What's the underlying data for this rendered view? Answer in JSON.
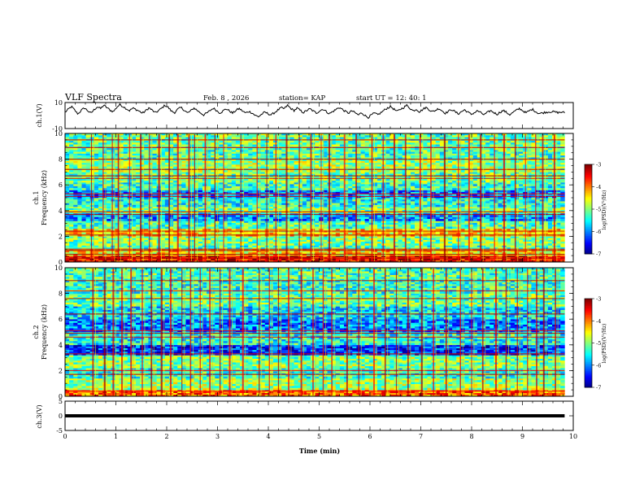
{
  "header": {
    "title": "VLF Spectra",
    "date": "Feb. 8 , 2026",
    "station": "station= KAP",
    "start": "start  UT =   12: 40: 1"
  },
  "chart_data": [
    {
      "type": "line",
      "name": "ch1-waveform",
      "ylabel": "ch.1(V)",
      "ylim": [
        -10,
        10
      ],
      "yticks": [
        "10",
        "-10"
      ],
      "xlim": [
        0,
        10
      ],
      "x_end": 9.83,
      "samples": [
        2.5,
        4.8,
        6.9,
        4.1,
        1.2,
        3.9,
        5.9,
        3.8,
        1.7,
        4.4,
        6.8,
        5.3,
        7.9,
        6.1,
        4.0,
        3.1,
        6.2,
        8.4,
        7.0,
        5.3,
        3.8,
        5.7,
        4.7,
        3.4,
        1.8,
        3.6,
        5.9,
        4.2,
        2.0,
        3.8,
        5.7,
        7.9,
        6.3,
        3.4,
        2.2,
        4.9,
        6.2,
        4.1,
        1.9,
        3.6,
        5.8,
        4.0,
        2.1,
        0.5,
        1.9,
        3.8,
        5.6,
        3.9,
        2.0,
        3.5,
        5.2,
        3.6,
        1.8,
        3.9,
        5.4,
        3.6,
        1.9,
        3.2,
        2.1,
        0.1,
        -0.9,
        1.0,
        2.6,
        1.4,
        0.5,
        2.3,
        4.1,
        6.0,
        5.2,
        7.8,
        5.6,
        3.7,
        5.7,
        3.9,
        2.2,
        3.9,
        5.1,
        3.5,
        1.9,
        3.6,
        5.0,
        3.2,
        1.4,
        3.0,
        4.5,
        6.3,
        4.8,
        3.0,
        1.9,
        3.6,
        2.1,
        0.4,
        2.2,
        0.2,
        -1.5,
        0.3,
        1.9,
        0.5,
        2.2,
        4.1,
        5.8,
        6.9,
        5.0,
        3.1,
        4.8,
        6.1,
        7.9,
        5.7,
        3.6,
        4.9,
        2.8,
        4.8,
        6.2,
        4.5,
        2.9,
        4.1,
        5.5,
        3.6,
        1.8,
        3.3,
        4.7,
        2.9,
        1.3,
        3.0,
        4.4,
        2.6,
        0.9,
        2.2,
        3.7,
        2.1,
        0.6,
        2.2,
        3.8,
        2.4,
        0.9,
        2.6,
        3.9,
        2.3,
        0.7,
        2.4,
        4.0,
        5.4,
        3.8,
        2.0,
        3.6,
        4.9,
        3.1,
        1.6,
        1.9,
        2.5,
        2.8,
        3.0,
        2.7,
        2.3,
        2.6,
        2.2
      ],
      "color": "#000000"
    },
    {
      "type": "heatmap",
      "name": "ch1-spectrogram",
      "ylabel": "ch.1",
      "ylabel2": "Frequency (kHz)",
      "ylim": [
        0,
        10
      ],
      "yticks": [
        "0",
        "2",
        "4",
        "6",
        "8",
        "10"
      ],
      "xlim": [
        0,
        10
      ],
      "x_end": 9.83,
      "colorbar": {
        "label": "log(PSD)(V²/Hz)",
        "min": -7,
        "max": -3,
        "ticks": [
          "-3",
          "-4",
          "-5",
          "-6",
          "-7"
        ]
      },
      "bands": [
        {
          "y0": 0.0,
          "y1": 0.5,
          "level": -3.4
        },
        {
          "y0": 0.5,
          "y1": 1.0,
          "level": -4.4
        },
        {
          "y0": 1.0,
          "y1": 1.3,
          "level": -5.2
        },
        {
          "y0": 1.3,
          "y1": 2.0,
          "level": -5.0
        },
        {
          "y0": 2.0,
          "y1": 2.6,
          "level": -4.4
        },
        {
          "y0": 2.6,
          "y1": 3.2,
          "level": -5.2
        },
        {
          "y0": 3.2,
          "y1": 3.8,
          "level": -5.9
        },
        {
          "y0": 3.8,
          "y1": 4.3,
          "level": -5.0
        },
        {
          "y0": 4.3,
          "y1": 5.0,
          "level": -5.4
        },
        {
          "y0": 5.0,
          "y1": 5.6,
          "level": -6.0
        },
        {
          "y0": 5.6,
          "y1": 6.2,
          "level": -5.3
        },
        {
          "y0": 6.2,
          "y1": 7.0,
          "level": -5.1
        },
        {
          "y0": 7.0,
          "y1": 8.0,
          "level": -4.9
        },
        {
          "y0": 8.0,
          "y1": 9.0,
          "level": -5.2
        },
        {
          "y0": 9.0,
          "y1": 10.0,
          "level": -5.1
        }
      ],
      "lines_khz": [
        0.3,
        0.6,
        0.9,
        1.0,
        2.1,
        2.4,
        3.7,
        3.9,
        5.1,
        5.3,
        6.5,
        6.7,
        7.2,
        8.0,
        8.9,
        9.5
      ],
      "spikes_min": [
        0.52,
        0.75,
        0.93,
        1.05,
        1.27,
        1.49,
        1.66,
        1.85,
        2.05,
        2.22,
        2.44,
        2.55,
        2.76,
        2.95,
        3.12,
        3.46,
        3.78,
        3.97,
        4.15,
        4.36,
        4.61,
        4.84,
        5.04,
        5.2,
        5.5,
        5.73,
        6.04,
        6.26,
        6.48,
        6.7,
        6.99,
        7.2,
        7.47,
        7.74,
        7.95,
        8.18,
        8.45,
        8.64,
        8.86,
        9.06,
        9.26,
        9.4,
        9.63
      ]
    },
    {
      "type": "heatmap",
      "name": "ch2-spectrogram",
      "ylabel": "ch.2",
      "ylabel2": "Frequency (kHz)",
      "ylim": [
        0,
        10
      ],
      "yticks": [
        "0",
        "2",
        "4",
        "6",
        "8",
        "10"
      ],
      "xlim": [
        0,
        10
      ],
      "x_end": 9.83,
      "colorbar": {
        "label": "log(PSD)(V²/Hz)",
        "min": -7,
        "max": -3,
        "ticks": [
          "-3",
          "-4",
          "-5",
          "-6",
          "-7"
        ]
      },
      "bands": [
        {
          "y0": 0.0,
          "y1": 0.5,
          "level": -3.9
        },
        {
          "y0": 0.5,
          "y1": 1.4,
          "level": -4.9
        },
        {
          "y0": 1.4,
          "y1": 2.2,
          "level": -5.3
        },
        {
          "y0": 2.2,
          "y1": 3.2,
          "level": -5.0
        },
        {
          "y0": 3.2,
          "y1": 4.0,
          "level": -6.3
        },
        {
          "y0": 4.0,
          "y1": 5.0,
          "level": -5.4
        },
        {
          "y0": 5.0,
          "y1": 6.0,
          "level": -6.0
        },
        {
          "y0": 6.0,
          "y1": 7.0,
          "level": -5.6
        },
        {
          "y0": 7.0,
          "y1": 8.0,
          "level": -5.1
        },
        {
          "y0": 8.0,
          "y1": 9.0,
          "level": -5.3
        },
        {
          "y0": 9.0,
          "y1": 10.0,
          "level": -5.2
        }
      ],
      "lines_khz": [
        0.4,
        1.7,
        2.0,
        3.3,
        4.6,
        4.9,
        5.1,
        6.4,
        7.6,
        8.2,
        9.0
      ],
      "spikes_min": [
        0.55,
        0.78,
        0.95,
        1.12,
        1.3,
        1.52,
        1.7,
        1.9,
        2.08,
        2.3,
        2.47,
        2.66,
        2.85,
        3.05,
        3.24,
        3.5,
        3.82,
        4.02,
        4.2,
        4.4,
        4.65,
        4.88,
        5.08,
        5.25,
        5.55,
        5.78,
        6.08,
        6.3,
        6.52,
        6.75,
        7.02,
        7.25,
        7.5,
        7.78,
        8.0,
        8.22,
        8.48,
        8.68,
        8.9,
        9.1,
        9.28,
        9.42,
        9.65
      ]
    },
    {
      "type": "line",
      "name": "ch3-waveform",
      "ylabel": "ch.3(V)",
      "ylim": [
        -5,
        5
      ],
      "yticks": [
        "5",
        "0",
        "-5"
      ],
      "xlim": [
        0,
        10
      ],
      "x_end": 9.83,
      "xticks": [
        "0",
        "1",
        "2",
        "3",
        "4",
        "5",
        "6",
        "7",
        "8",
        "9",
        "10"
      ],
      "xlabel": "Time (min)",
      "band_center": 0,
      "band_halfwidth": 0.55,
      "color": "#000000"
    }
  ]
}
